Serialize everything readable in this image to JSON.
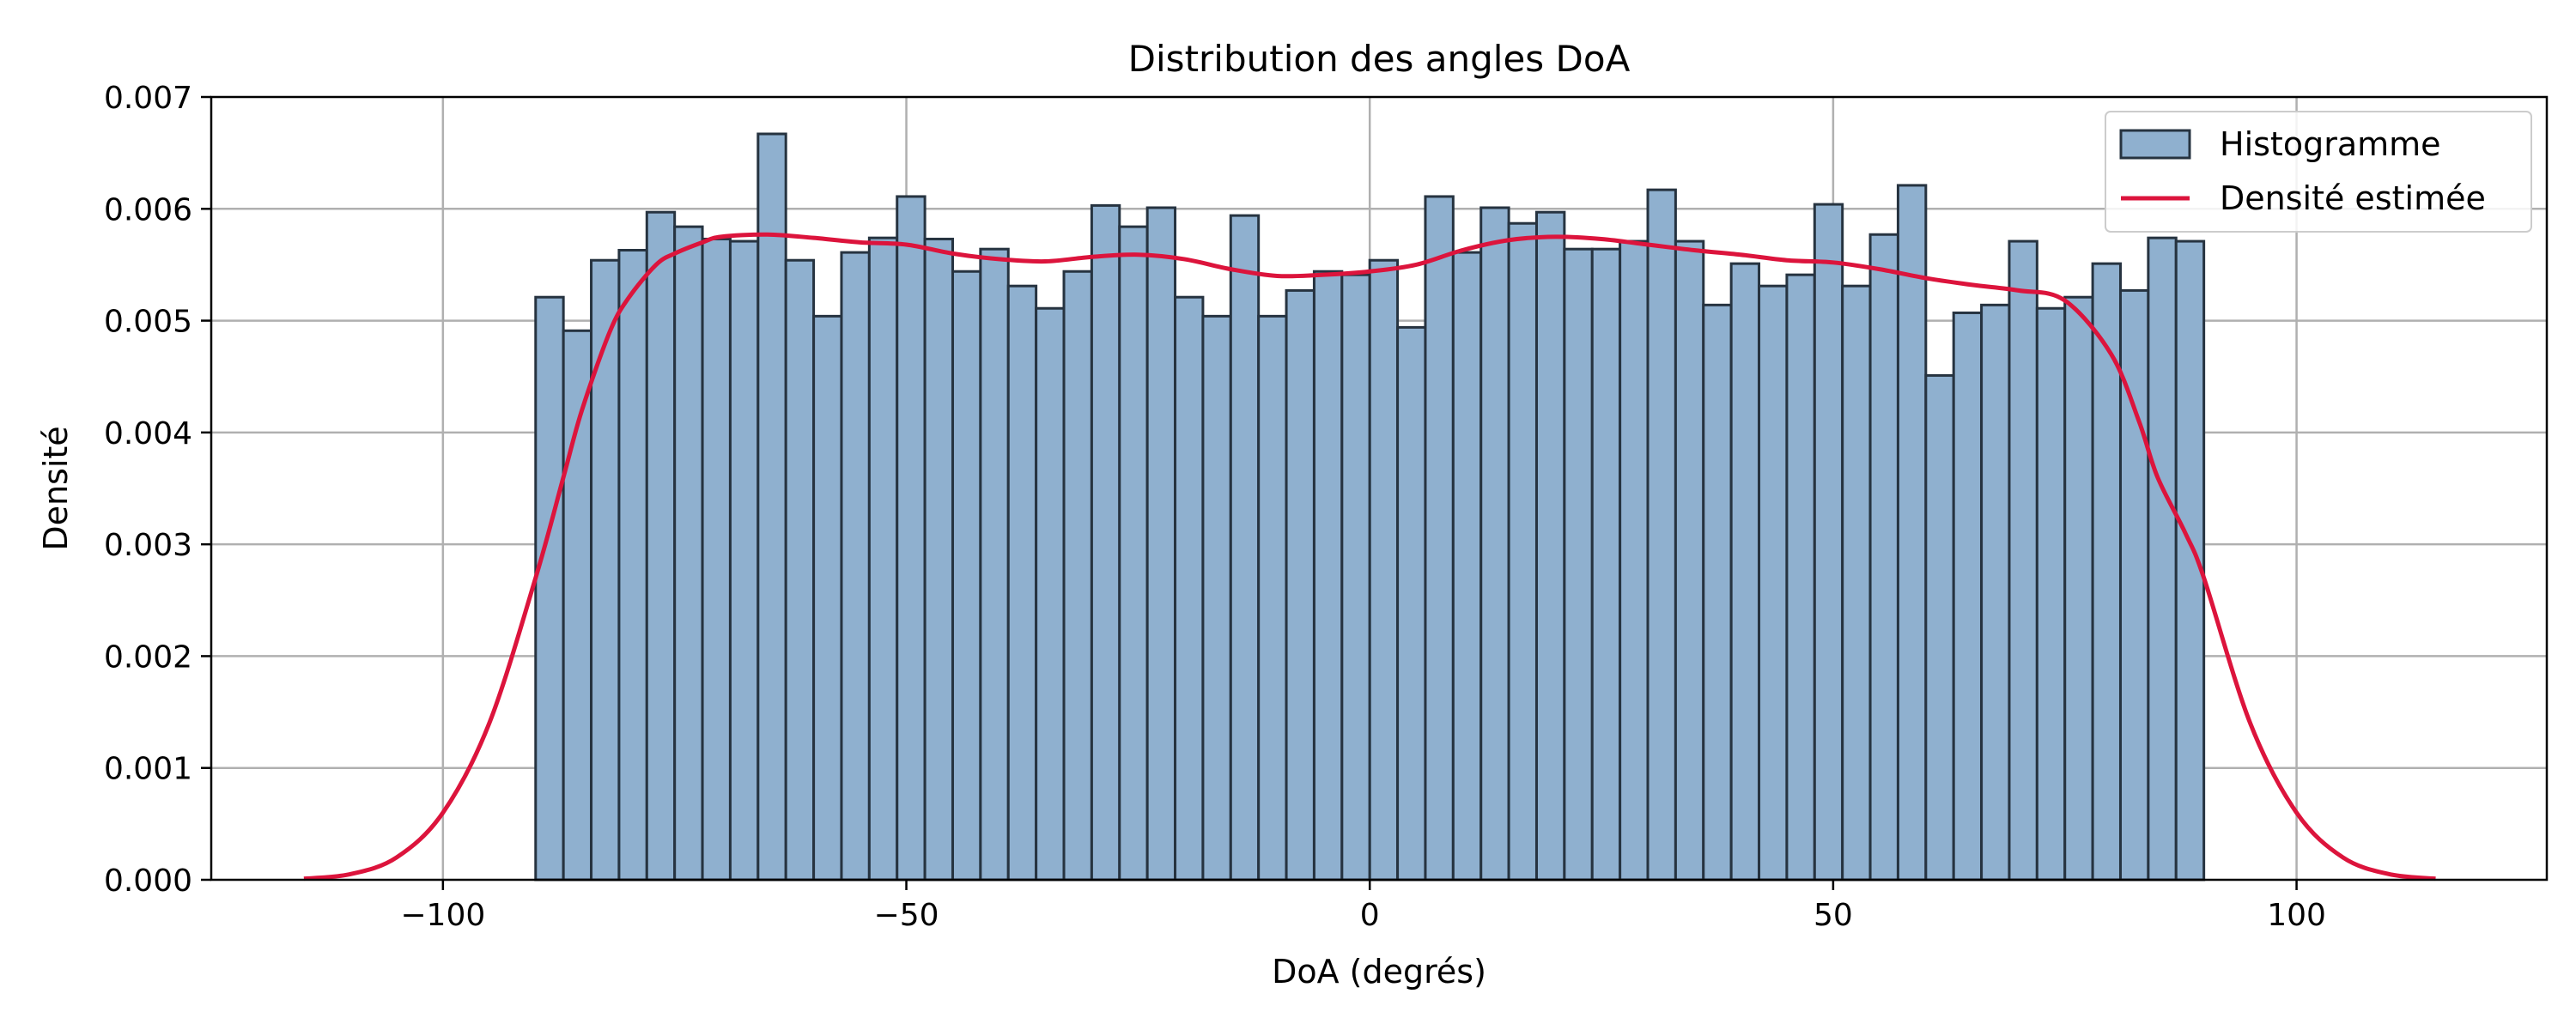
{
  "chart_data": {
    "type": "bar",
    "title": "Distribution des angles DoA",
    "xlabel": "DoA (degrés)",
    "ylabel": "Densité",
    "xlim": [
      -125,
      127
    ],
    "ylim": [
      0,
      0.007
    ],
    "xticks": [
      -100,
      -50,
      0,
      50,
      100
    ],
    "xtick_labels": [
      "−100",
      "−50",
      "0",
      "50",
      "100"
    ],
    "yticks": [
      0,
      0.001,
      0.002,
      0.003,
      0.004,
      0.005,
      0.006,
      0.007
    ],
    "ytick_labels": [
      "0.000",
      "0.001",
      "0.002",
      "0.003",
      "0.004",
      "0.005",
      "0.006",
      "0.007"
    ],
    "grid": true,
    "legend_position": "top-right",
    "histogram": {
      "name": "Histogramme",
      "bin_start": -90,
      "bin_end": 90,
      "values": [
        0.00521,
        0.00491,
        0.00554,
        0.00563,
        0.00597,
        0.00584,
        0.00573,
        0.00571,
        0.00667,
        0.00554,
        0.00504,
        0.00561,
        0.00574,
        0.00611,
        0.00573,
        0.00544,
        0.00564,
        0.00531,
        0.00511,
        0.00544,
        0.00603,
        0.00584,
        0.00601,
        0.00521,
        0.00504,
        0.00594,
        0.00504,
        0.00527,
        0.00544,
        0.00541,
        0.00554,
        0.00494,
        0.00611,
        0.00561,
        0.00601,
        0.00587,
        0.00597,
        0.00564,
        0.00564,
        0.00571,
        0.00617,
        0.00571,
        0.00514,
        0.00551,
        0.00531,
        0.00541,
        0.00604,
        0.00531,
        0.00577,
        0.00621,
        0.00451,
        0.00507,
        0.00514,
        0.00571,
        0.00511,
        0.00521,
        0.00551,
        0.00527,
        0.00574,
        0.00571
      ],
      "fill": "#8fb0cf",
      "edge": "#263340"
    },
    "kde": {
      "name": "Densité estimée",
      "color": "#dc143c",
      "x": [
        -115,
        -110,
        -105,
        -100,
        -95,
        -90,
        -87,
        -85,
        -82,
        -80,
        -77,
        -75,
        -72,
        -70,
        -65,
        -60,
        -55,
        -50,
        -45,
        -40,
        -35,
        -30,
        -25,
        -20,
        -15,
        -10,
        -5,
        0,
        5,
        10,
        15,
        20,
        25,
        30,
        35,
        40,
        45,
        50,
        55,
        60,
        65,
        70,
        75,
        80,
        83,
        85,
        88,
        90,
        95,
        100,
        105,
        110,
        115
      ],
      "y": [
        1e-05,
        5e-05,
        0.0002,
        0.0006,
        0.0014,
        0.0027,
        0.0036,
        0.0042,
        0.0049,
        0.0052,
        0.0055,
        0.0056,
        0.0057,
        0.00575,
        0.00577,
        0.00574,
        0.0057,
        0.00568,
        0.0056,
        0.00555,
        0.00553,
        0.00557,
        0.00559,
        0.00555,
        0.00546,
        0.0054,
        0.00541,
        0.00544,
        0.0055,
        0.00563,
        0.00572,
        0.00575,
        0.00573,
        0.00568,
        0.00563,
        0.00559,
        0.00554,
        0.00552,
        0.00546,
        0.00538,
        0.00532,
        0.00527,
        0.00518,
        0.0047,
        0.0041,
        0.0036,
        0.0031,
        0.0027,
        0.0014,
        0.0006,
        0.0002,
        5e-05,
        1e-05
      ]
    }
  }
}
